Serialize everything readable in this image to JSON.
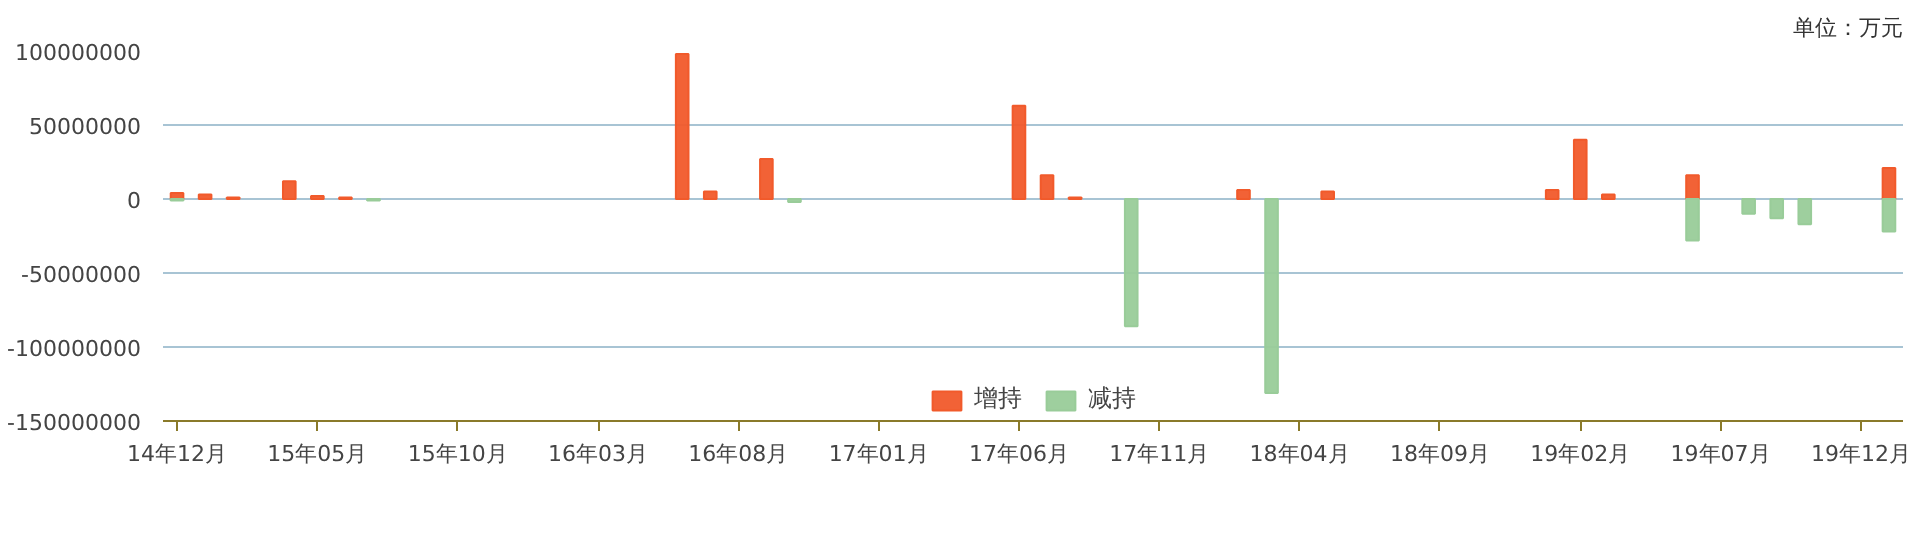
{
  "chart_data": {
    "type": "bar",
    "annotations": [
      "单位：万元"
    ],
    "categories": [
      "14年12月",
      null,
      null,
      null,
      null,
      "15年05月",
      null,
      null,
      null,
      null,
      "15年10月",
      null,
      null,
      null,
      null,
      "16年03月",
      null,
      null,
      null,
      null,
      "16年08月",
      null,
      null,
      null,
      null,
      "17年01月",
      null,
      null,
      null,
      null,
      "17年06月",
      null,
      null,
      null,
      null,
      "17年11月",
      null,
      null,
      null,
      null,
      "18年04月",
      null,
      null,
      null,
      null,
      "18年09月",
      null,
      null,
      null,
      null,
      "19年02月",
      null,
      null,
      null,
      null,
      "19年07月",
      null,
      null,
      null,
      null,
      "19年12月",
      null
    ],
    "series": [
      {
        "name": "增持",
        "color": "#f15a2b",
        "values": [
          4000000,
          3000000,
          1000000,
          null,
          12000000,
          2000000,
          1000000,
          null,
          null,
          null,
          null,
          null,
          null,
          null,
          null,
          null,
          null,
          null,
          98000000,
          5000000,
          null,
          27000000,
          null,
          null,
          null,
          null,
          null,
          null,
          null,
          null,
          63000000,
          16000000,
          1000000,
          null,
          null,
          null,
          null,
          null,
          6000000,
          null,
          null,
          5000000,
          null,
          null,
          null,
          null,
          null,
          null,
          null,
          6000000,
          40000000,
          3000000,
          null,
          null,
          16000000,
          null,
          null,
          null,
          null,
          null,
          null,
          21000000
        ]
      },
      {
        "name": "减持",
        "color": "#99cc99",
        "values": [
          -1000000,
          null,
          null,
          null,
          null,
          null,
          null,
          -1000000,
          null,
          null,
          null,
          null,
          null,
          null,
          null,
          null,
          null,
          null,
          null,
          null,
          null,
          null,
          -2000000,
          null,
          null,
          null,
          null,
          null,
          null,
          null,
          null,
          null,
          null,
          null,
          -86000000,
          null,
          null,
          null,
          null,
          -131000000,
          null,
          null,
          null,
          null,
          null,
          null,
          null,
          null,
          null,
          null,
          null,
          null,
          null,
          null,
          -28000000,
          null,
          -10000000,
          -13000000,
          -17000000,
          null,
          null,
          -22000000
        ]
      }
    ],
    "ylim": [
      -150000000,
      100000000
    ],
    "yticks": [
      -150000000,
      -100000000,
      -50000000,
      0,
      50000000,
      100000000
    ],
    "grid": "y",
    "legend": "bottom"
  }
}
